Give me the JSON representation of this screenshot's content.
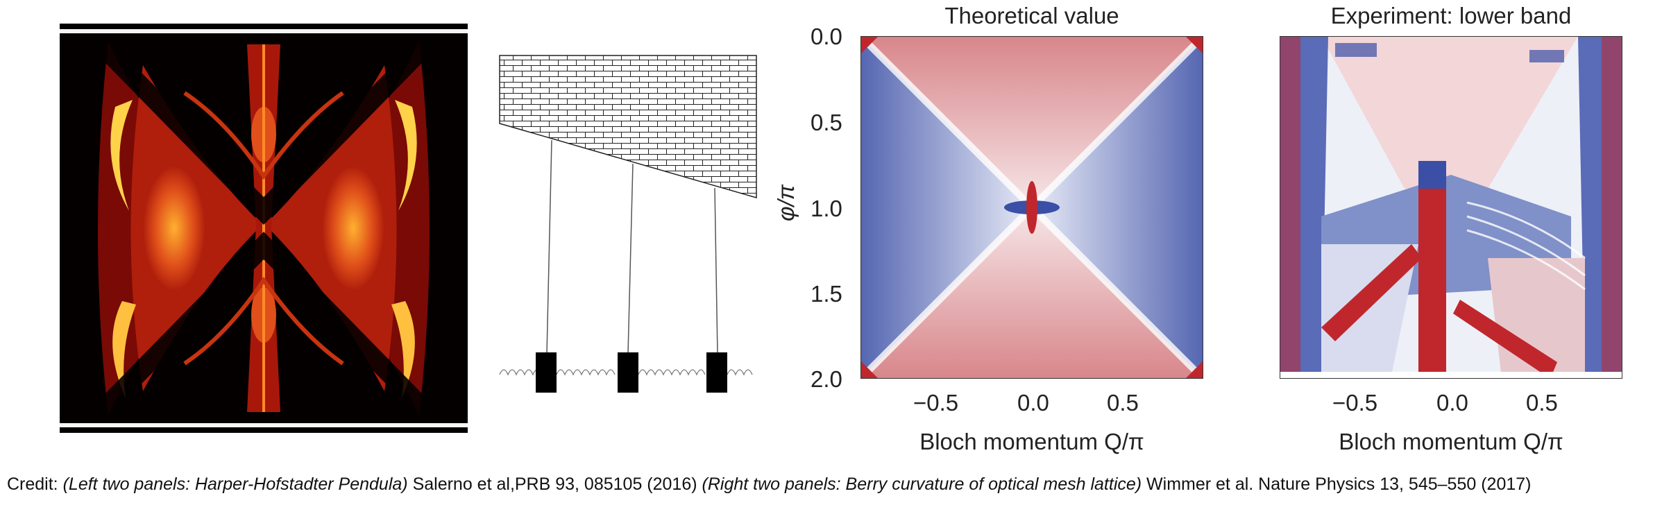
{
  "panels": {
    "hofstadter": {
      "name": "hofstadter-butterfly-spectrum"
    },
    "pendula": {
      "name": "pendula-chain-diagram"
    },
    "theory": {
      "title": "Theoretical value",
      "ylabel": "φ/π",
      "xlabel": "Bloch momentum Q/π",
      "yticks": [
        "0.0",
        "0.5",
        "1.0",
        "1.5",
        "2.0"
      ],
      "xticks": [
        "−0.5",
        "0.0",
        "0.5"
      ]
    },
    "experiment": {
      "title": "Experiment: lower band",
      "xlabel": "Bloch momentum Q/π",
      "xticks": [
        "−0.5",
        "0.0",
        "0.5"
      ]
    }
  },
  "credit": {
    "prefix": "Credit: ",
    "left_italic": "(Left two panels: Harper-Hofstadter Pendula)",
    "left_ref": " Salerno et al,PRB 93, 085105 (2016) ",
    "right_italic": "(Right two panels: Berry curvature of optical mesh lattice)",
    "right_ref": " Wimmer et al. Nature Physics 13, 545–550 (2017)"
  },
  "colors": {
    "red": "#c0272d",
    "blue": "#3a4fa5",
    "white": "#ffffff",
    "butterfly_dark": "#050000",
    "butterfly_hot": "#ffd24a"
  }
}
